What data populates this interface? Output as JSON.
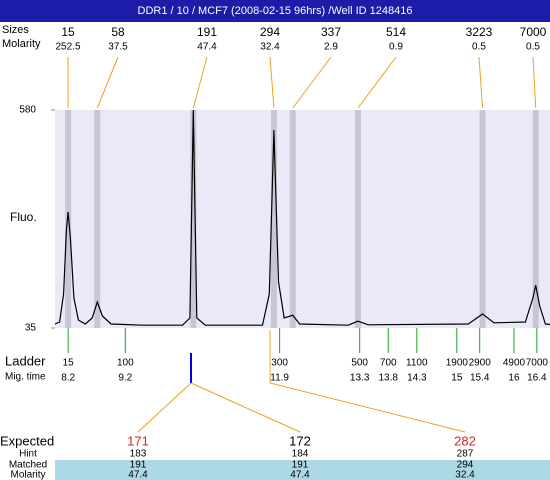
{
  "title": "DDR1 / 10 / MCF7 (2008-02-15 96hrs) /Well ID 1248416",
  "chart_data": {
    "type": "line",
    "labels": {
      "sizes": "Sizes",
      "molarity": "Molarity",
      "y": "Fluo.",
      "ladder": "Ladder",
      "mig_time": "Mig. time"
    },
    "ylim": [
      35,
      580
    ],
    "yticks": [
      35,
      580
    ],
    "xlim": [
      7.97,
      16.63
    ],
    "trace": {
      "color": "#000000",
      "x": [
        7.97,
        8.05,
        8.12,
        8.17,
        8.2,
        8.24,
        8.3,
        8.38,
        8.5,
        8.62,
        8.71,
        8.8,
        8.95,
        9.5,
        10.2,
        10.33,
        10.39,
        10.45,
        10.6,
        11.6,
        11.72,
        11.8,
        11.88,
        11.98,
        12.13,
        12.25,
        13.1,
        13.27,
        13.45,
        15.2,
        15.45,
        15.65,
        16.2,
        16.33,
        16.38,
        16.45,
        16.55,
        16.63
      ],
      "y": [
        45,
        50,
        120,
        280,
        325,
        260,
        110,
        55,
        45,
        60,
        100,
        65,
        45,
        42,
        42,
        60,
        580,
        60,
        42,
        42,
        120,
        530,
        150,
        60,
        67,
        45,
        42,
        52,
        43,
        45,
        70,
        48,
        50,
        110,
        142,
        90,
        45,
        44
      ]
    },
    "peaks": {
      "sizes": [
        15,
        58,
        191,
        294,
        337,
        514,
        3223,
        7000
      ],
      "molarity": [
        252.5,
        37.5,
        47.4,
        32.4,
        2.9,
        0.9,
        0.5,
        0.5
      ],
      "time": [
        8.2,
        8.71,
        10.39,
        11.8,
        12.13,
        13.27,
        15.45,
        16.38
      ]
    },
    "ladder": {
      "sizes": [
        15,
        100,
        300,
        500,
        700,
        1100,
        1900,
        2900,
        4900,
        7000
      ],
      "times": [
        8.2,
        9.2,
        11.9,
        13.3,
        13.8,
        14.3,
        15,
        15.4,
        16,
        16.4
      ]
    }
  },
  "table": {
    "row_labels": [
      "Expected",
      "Hint",
      "Matched",
      "Molarity"
    ],
    "expected": [
      171,
      172,
      282
    ],
    "expected_colors": [
      "#e02020",
      "#000000",
      "#e02020"
    ],
    "hint": [
      183,
      184,
      287
    ],
    "matched": [
      191,
      191,
      294
    ],
    "molarity": [
      47.4,
      47.4,
      32.4
    ]
  }
}
